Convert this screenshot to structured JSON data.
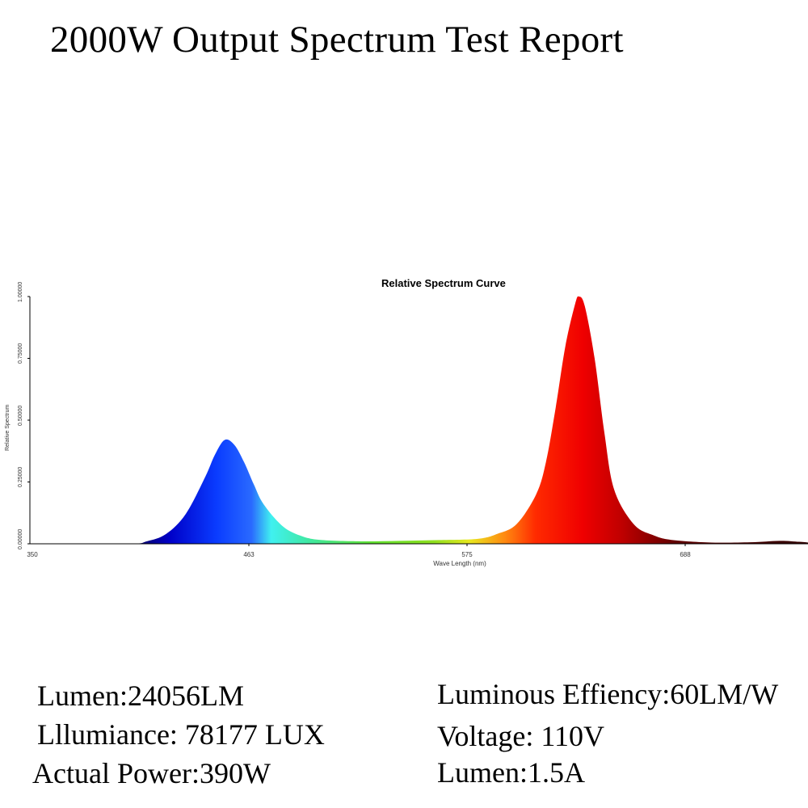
{
  "header": {
    "title": "2000W Output Spectrum Test Report"
  },
  "chart_data": {
    "type": "area",
    "title": "Relative Spectrum Curve",
    "xlabel": "Wave Length (nm)",
    "ylabel": "Relative Spectrum",
    "xlim": [
      350,
      750
    ],
    "ylim": [
      0,
      1
    ],
    "x_ticks": [
      "350",
      "463",
      "575",
      "688"
    ],
    "y_ticks": [
      "0.00000",
      "0.25000",
      "0.50000",
      "0.75000",
      "1.00000"
    ],
    "grid": false,
    "legend": null,
    "fill": "wavelength-colored spectrum gradient",
    "series": [
      {
        "name": "Relative Spectrum",
        "x": [
          350,
          400,
          410,
          420,
          430,
          440,
          445,
          450,
          455,
          460,
          465,
          470,
          480,
          490,
          500,
          520,
          540,
          560,
          580,
          590,
          600,
          610,
          615,
          620,
          625,
          630,
          632,
          635,
          640,
          645,
          650,
          660,
          670,
          680,
          700,
          720,
          735,
          745,
          750
        ],
        "y": [
          0.0,
          0.0,
          0.01,
          0.04,
          0.12,
          0.27,
          0.36,
          0.42,
          0.4,
          0.33,
          0.24,
          0.16,
          0.07,
          0.03,
          0.015,
          0.01,
          0.012,
          0.015,
          0.02,
          0.04,
          0.08,
          0.2,
          0.33,
          0.55,
          0.8,
          0.97,
          1.0,
          0.96,
          0.75,
          0.45,
          0.22,
          0.08,
          0.035,
          0.015,
          0.005,
          0.006,
          0.012,
          0.008,
          0.005
        ]
      }
    ],
    "peaks": [
      {
        "wavelength_nm": 450,
        "relative": 0.42,
        "color": "blue"
      },
      {
        "wavelength_nm": 632,
        "relative": 1.0,
        "color": "red"
      }
    ]
  },
  "specs": {
    "left": [
      "Lumen:24056LM",
      "Lllumiance: 78177 LUX",
      "Actual Power:390W"
    ],
    "right": [
      "Luminous Effiency:60LM/W",
      "Voltage: 110V",
      "Lumen:1.5A"
    ]
  }
}
